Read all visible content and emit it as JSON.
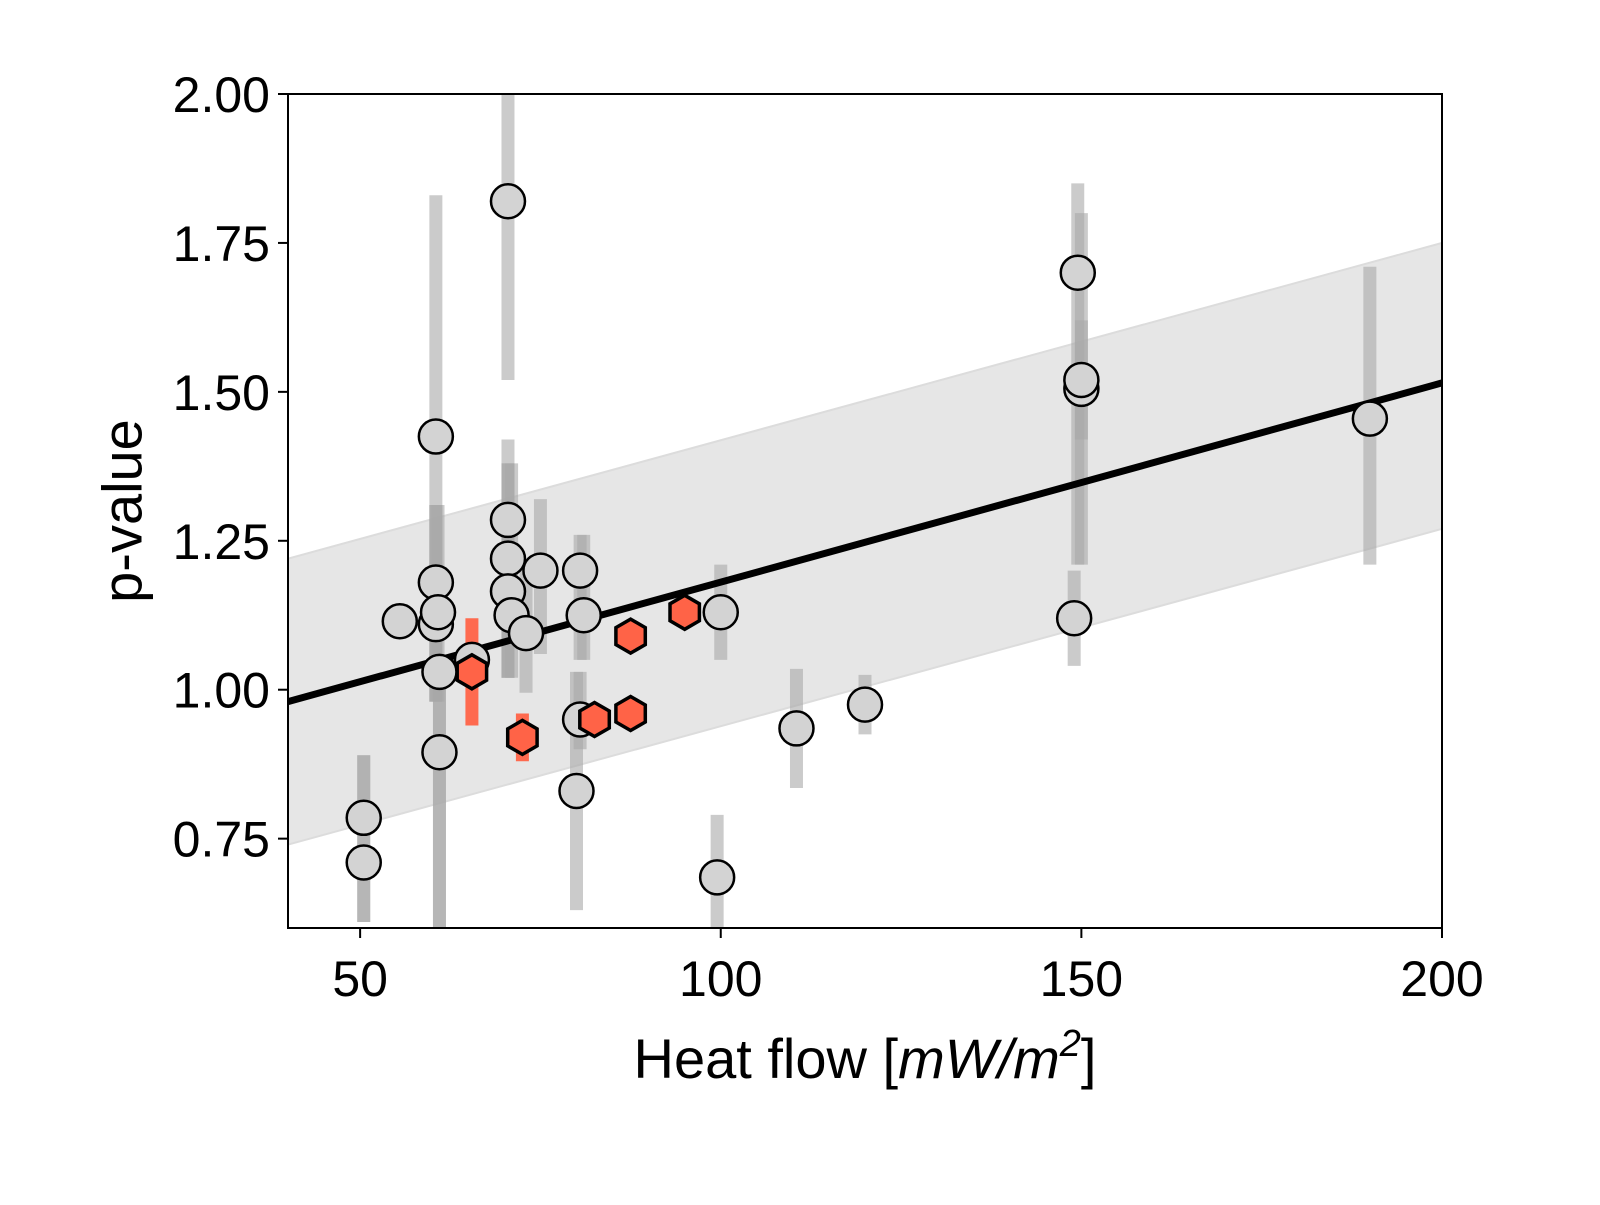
{
  "chart_data": {
    "type": "scatter",
    "title": "",
    "xlabel": "Heat flow [mW/m²]",
    "xlabel_parts": {
      "prefix": "Heat flow [",
      "units_a": "mW/m",
      "superscript": "2",
      "suffix": "]"
    },
    "ylabel": "p-value",
    "xlim": [
      40,
      200
    ],
    "ylim": [
      0.6,
      2.0
    ],
    "x_ticks": [
      50,
      100,
      150,
      200
    ],
    "x_tick_labels": [
      "50",
      "100",
      "150",
      "200"
    ],
    "y_ticks": [
      0.75,
      1.0,
      1.25,
      1.5,
      1.75,
      2.0
    ],
    "y_tick_labels": [
      "0.75",
      "1.00",
      "1.25",
      "1.50",
      "1.75",
      "2.00"
    ],
    "grid": false,
    "colors": {
      "gray_marker": "#d3d3d3",
      "red_marker": "#ff6347",
      "error_bar_gray": "#a9a9a9",
      "error_bar_red": "#ff6347",
      "fit_line": "#000000",
      "band": "#e6e6e6"
    },
    "fit_line": {
      "x": [
        40,
        200
      ],
      "y": [
        0.98,
        1.515
      ]
    },
    "confidence_band": {
      "x": [
        40,
        200
      ],
      "lower": [
        0.74,
        1.27
      ],
      "upper": [
        1.22,
        1.75
      ]
    },
    "series": [
      {
        "marker": "circle",
        "points": [
          {
            "x": 50.5,
            "y": 0.785,
            "lo": 0.61,
            "hi": 0.89
          },
          {
            "x": 50.5,
            "y": 0.71,
            "lo": 0.61,
            "hi": 0.89
          },
          {
            "x": 55.5,
            "y": 1.115,
            "lo": null,
            "hi": null
          },
          {
            "x": 60.5,
            "y": 1.425,
            "lo": 0.98,
            "hi": 1.83
          },
          {
            "x": 60.5,
            "y": 1.18,
            "lo": 0.98,
            "hi": 1.31
          },
          {
            "x": 60.5,
            "y": 1.11,
            "lo": 0.98,
            "hi": 1.31
          },
          {
            "x": 60.8,
            "y": 1.13,
            "lo": 0.98,
            "hi": 1.31
          },
          {
            "x": 61.0,
            "y": 1.03,
            "lo": 0.6,
            "hi": 1.05
          },
          {
            "x": 61.0,
            "y": 0.895,
            "lo": 0.6,
            "hi": 1.05
          },
          {
            "x": 65.5,
            "y": 1.05,
            "lo": null,
            "hi": null
          },
          {
            "x": 70.5,
            "y": 1.82,
            "lo": 1.52,
            "hi": 2.0
          },
          {
            "x": 70.5,
            "y": 1.285,
            "lo": 1.02,
            "hi": 1.42
          },
          {
            "x": 70.5,
            "y": 1.22,
            "lo": 1.02,
            "hi": 1.38
          },
          {
            "x": 70.5,
            "y": 1.165,
            "lo": 1.02,
            "hi": 1.38
          },
          {
            "x": 71.0,
            "y": 1.125,
            "lo": 1.02,
            "hi": 1.38
          },
          {
            "x": 73.0,
            "y": 1.095,
            "lo": 0.995,
            "hi": 1.2
          },
          {
            "x": 75.0,
            "y": 1.2,
            "lo": 1.06,
            "hi": 1.32
          },
          {
            "x": 80.5,
            "y": 1.2,
            "lo": 1.05,
            "hi": 1.26
          },
          {
            "x": 81.0,
            "y": 1.125,
            "lo": 1.05,
            "hi": 1.26
          },
          {
            "x": 80.5,
            "y": 0.95,
            "lo": 0.9,
            "hi": 1.03
          },
          {
            "x": 80.0,
            "y": 0.83,
            "lo": 0.63,
            "hi": 1.03
          },
          {
            "x": 100.0,
            "y": 1.13,
            "lo": 1.05,
            "hi": 1.21
          },
          {
            "x": 99.5,
            "y": 0.685,
            "lo": 0.6,
            "hi": 0.79
          },
          {
            "x": 110.5,
            "y": 0.935,
            "lo": 0.835,
            "hi": 1.035
          },
          {
            "x": 120.0,
            "y": 0.975,
            "lo": 0.925,
            "hi": 1.025
          },
          {
            "x": 149.5,
            "y": 1.7,
            "lo": 1.21,
            "hi": 1.85
          },
          {
            "x": 150.0,
            "y": 1.505,
            "lo": 1.21,
            "hi": 1.8
          },
          {
            "x": 150.0,
            "y": 1.52,
            "lo": 1.42,
            "hi": 1.62
          },
          {
            "x": 149.0,
            "y": 1.12,
            "lo": 1.04,
            "hi": 1.2
          },
          {
            "x": 190.0,
            "y": 1.455,
            "lo": 1.21,
            "hi": 1.71
          }
        ]
      },
      {
        "marker": "hexagon",
        "points": [
          {
            "x": 65.5,
            "y": 1.03,
            "lo": 0.94,
            "hi": 1.12
          },
          {
            "x": 72.5,
            "y": 0.92,
            "lo": 0.88,
            "hi": 0.96
          },
          {
            "x": 82.5,
            "y": 0.95,
            "lo": null,
            "hi": null
          },
          {
            "x": 87.5,
            "y": 0.96,
            "lo": null,
            "hi": null
          },
          {
            "x": 87.5,
            "y": 1.09,
            "lo": null,
            "hi": null
          },
          {
            "x": 95.0,
            "y": 1.13,
            "lo": null,
            "hi": null
          }
        ]
      }
    ]
  }
}
